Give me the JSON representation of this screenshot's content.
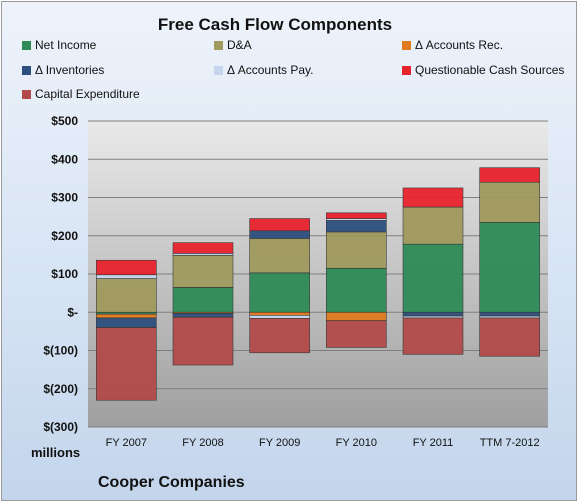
{
  "chart_data": {
    "type": "bar",
    "stacked": true,
    "title": "Free Cash Flow Components",
    "units_label": "millions",
    "footer": "Cooper Companies",
    "categories": [
      "FY 2007",
      "FY 2008",
      "FY 2009",
      "FY 2010",
      "FY 2011",
      "TTM 7-2012"
    ],
    "ylim": [
      -300,
      500
    ],
    "yticks": [
      500,
      400,
      300,
      200,
      100,
      0,
      -100,
      -200,
      -300
    ],
    "ytick_labels": [
      "$500",
      "$400",
      "$300",
      "$200",
      "$100",
      "$-",
      "$(100)",
      "$(200)",
      "$(300)"
    ],
    "grid": true,
    "legend_position": "top",
    "series": [
      {
        "name": "Net Income",
        "color": "#2e8b57",
        "values": [
          -5,
          65,
          103,
          115,
          178,
          235
        ]
      },
      {
        "name": "D&A",
        "color": "#a09a5e",
        "values": [
          88,
          84,
          90,
          95,
          97,
          105
        ]
      },
      {
        "name": "Δ Accounts Rec.",
        "color": "#e07b1f",
        "values": [
          -10,
          -3,
          -8,
          -22,
          0,
          0
        ]
      },
      {
        "name": "Δ Inventories",
        "color": "#2d4f7e",
        "values": [
          -25,
          -10,
          20,
          30,
          -10,
          -10
        ]
      },
      {
        "name": "Δ Accounts Pay.",
        "color": "#c5d6ee",
        "values": [
          10,
          5,
          -8,
          5,
          -5,
          -5
        ]
      },
      {
        "name": "Questionable Cash Sources",
        "color": "#e8232e",
        "values": [
          38,
          28,
          32,
          15,
          50,
          38
        ]
      },
      {
        "name": "Capital Expenditure",
        "color": "#b24a4a",
        "values": [
          -190,
          -125,
          -90,
          -70,
          -95,
          -100
        ]
      }
    ]
  }
}
